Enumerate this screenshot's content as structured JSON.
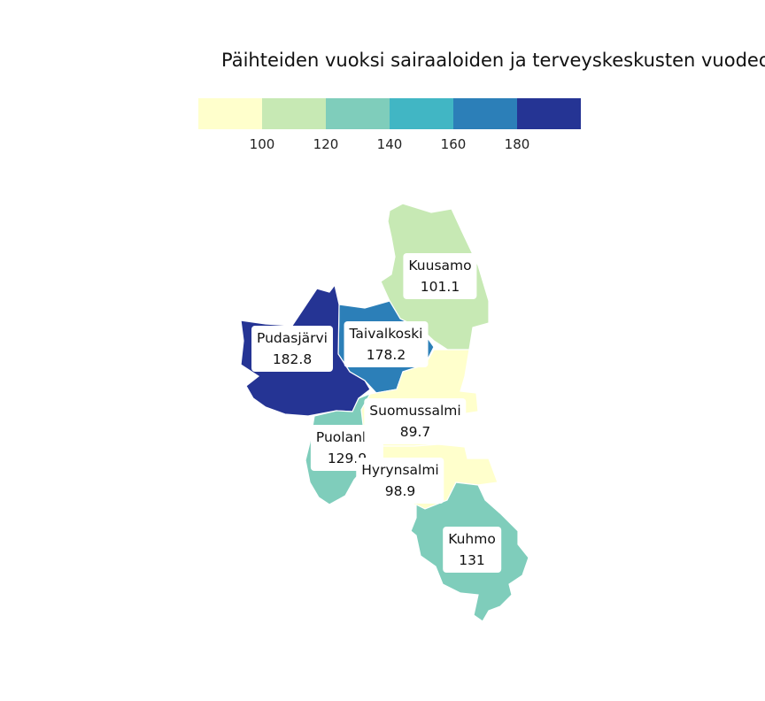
{
  "title": "Päihteiden vuoksi sairaaloiden ja terveyskeskusten vuodeos",
  "legend": {
    "colors": [
      "#ffffcc",
      "#c7e9b4",
      "#7fcdbb",
      "#41b6c4",
      "#2c7fb8",
      "#253494"
    ],
    "ticks": [
      "100",
      "120",
      "140",
      "160",
      "180"
    ],
    "breaks": [
      100,
      120,
      140,
      160,
      180
    ]
  },
  "regions": [
    {
      "name": "Kuusamo",
      "value": "101.1"
    },
    {
      "name": "Pudasjärvi",
      "value": "182.8"
    },
    {
      "name": "Taivalkoski",
      "value": "178.2"
    },
    {
      "name": "Suomussalmi",
      "value": "89.7"
    },
    {
      "name": "Puolanka",
      "value": "129.9"
    },
    {
      "name": "Hyrynsalmi",
      "value": "98.9"
    },
    {
      "name": "Kuhmo",
      "value": "131"
    }
  ]
}
